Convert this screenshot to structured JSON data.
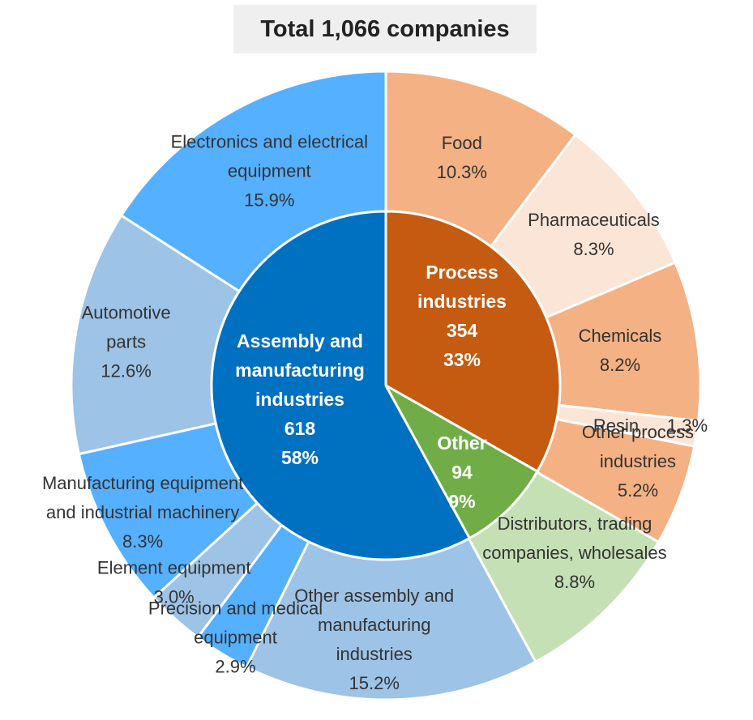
{
  "chart_data": {
    "type": "pie",
    "title": "Total 1,066 companies",
    "inner_ring": [
      {
        "label": [
          "Process",
          "industries"
        ],
        "count": "354",
        "percent": "33%",
        "value": 354,
        "color": "#C55A11"
      },
      {
        "label": [
          "Other"
        ],
        "count": "94",
        "percent": "9%",
        "value": 94,
        "color": "#70AD47"
      },
      {
        "label": [
          "Assembly and",
          "manufacturing",
          "industries"
        ],
        "count": "618",
        "percent": "58%",
        "value": 618,
        "color": "#0070C0"
      }
    ],
    "outer_ring": [
      {
        "label": [
          "Food"
        ],
        "percent": "10.3%",
        "value": 10.3,
        "color": "#F4B183"
      },
      {
        "label": [
          "Pharmaceuticals"
        ],
        "percent": "8.3%",
        "value": 8.3,
        "color": "#FBE5D6"
      },
      {
        "label": [
          "Chemicals"
        ],
        "percent": "8.2%",
        "value": 8.2,
        "color": "#F4B183"
      },
      {
        "label": [
          "Resin"
        ],
        "percent": "1.3%",
        "value": 1.3,
        "color": "#FBE5D6"
      },
      {
        "label": [
          "Other process",
          "industries"
        ],
        "percent": "5.2%",
        "value": 5.2,
        "color": "#F4B183"
      },
      {
        "label": [
          "Distributors, trading",
          "companies, wholesales"
        ],
        "percent": "8.8%",
        "value": 8.8,
        "color": "#C5E0B4"
      },
      {
        "label": [
          "Other assembly and",
          "manufacturing",
          "industries"
        ],
        "percent": "15.2%",
        "value": 15.2,
        "color": "#9DC3E6"
      },
      {
        "label": [
          "Precision and medical",
          "equipment"
        ],
        "percent": "2.9%",
        "value": 2.9,
        "color": "#55B0FF"
      },
      {
        "label": [
          "Element equipment"
        ],
        "percent": "3.0%",
        "value": 3.0,
        "color": "#9DC3E6"
      },
      {
        "label": [
          "Manufacturing equipment",
          "and industrial machinery"
        ],
        "percent": "8.3%",
        "value": 8.3,
        "color": "#55B0FF"
      },
      {
        "label": [
          "Automotive",
          "parts"
        ],
        "percent": "12.6%",
        "value": 12.6,
        "color": "#9DC3E6"
      },
      {
        "label": [
          "Electronics and electrical",
          "equipment"
        ],
        "percent": "15.9%",
        "value": 15.9,
        "color": "#55B0FF"
      }
    ]
  }
}
